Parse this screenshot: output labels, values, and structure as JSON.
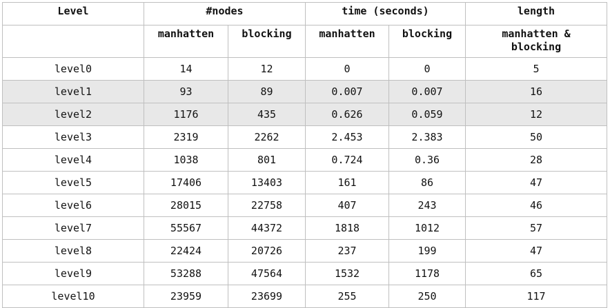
{
  "table": {
    "headers": {
      "level": "Level",
      "nodes": "#nodes",
      "time": "time (seconds)",
      "length": "length",
      "nodes_manhatten": "manhatten",
      "nodes_blocking": "blocking",
      "time_manhatten": "manhatten",
      "time_blocking": "blocking",
      "length_sub_line1": "manhatten &",
      "length_sub_line2": "blocking"
    },
    "rows": [
      {
        "level": "level0",
        "nodes_manhatten": "14",
        "nodes_blocking": "12",
        "time_manhatten": "0",
        "time_blocking": "0",
        "length": "5"
      },
      {
        "level": "level1",
        "nodes_manhatten": "93",
        "nodes_blocking": "89",
        "time_manhatten": "0.007",
        "time_blocking": "0.007",
        "length": "16"
      },
      {
        "level": "level2",
        "nodes_manhatten": "1176",
        "nodes_blocking": "435",
        "time_manhatten": "0.626",
        "time_blocking": "0.059",
        "length": "12"
      },
      {
        "level": "level3",
        "nodes_manhatten": "2319",
        "nodes_blocking": "2262",
        "time_manhatten": "2.453",
        "time_blocking": "2.383",
        "length": "50"
      },
      {
        "level": "level4",
        "nodes_manhatten": "1038",
        "nodes_blocking": "801",
        "time_manhatten": "0.724",
        "time_blocking": "0.36",
        "length": "28"
      },
      {
        "level": "level5",
        "nodes_manhatten": "17406",
        "nodes_blocking": "13403",
        "time_manhatten": "161",
        "time_blocking": "86",
        "length": "47"
      },
      {
        "level": "level6",
        "nodes_manhatten": "28015",
        "nodes_blocking": "22758",
        "time_manhatten": "407",
        "time_blocking": "243",
        "length": "46"
      },
      {
        "level": "level7",
        "nodes_manhatten": "55567",
        "nodes_blocking": "44372",
        "time_manhatten": "1818",
        "time_blocking": "1012",
        "length": "57"
      },
      {
        "level": "level8",
        "nodes_manhatten": "22424",
        "nodes_blocking": "20726",
        "time_manhatten": "237",
        "time_blocking": "199",
        "length": "47"
      },
      {
        "level": "level9",
        "nodes_manhatten": "53288",
        "nodes_blocking": "47564",
        "time_manhatten": "1532",
        "time_blocking": "1178",
        "length": "65"
      },
      {
        "level": "level10",
        "nodes_manhatten": "23959",
        "nodes_blocking": "23699",
        "time_manhatten": "255",
        "time_blocking": "250",
        "length": "117"
      }
    ],
    "shaded_rows": [
      "level1",
      "level2"
    ],
    "colors": {
      "border": "#bfbfbf",
      "shaded_row_bg": "#e8e8e8",
      "text": "#111111"
    }
  }
}
